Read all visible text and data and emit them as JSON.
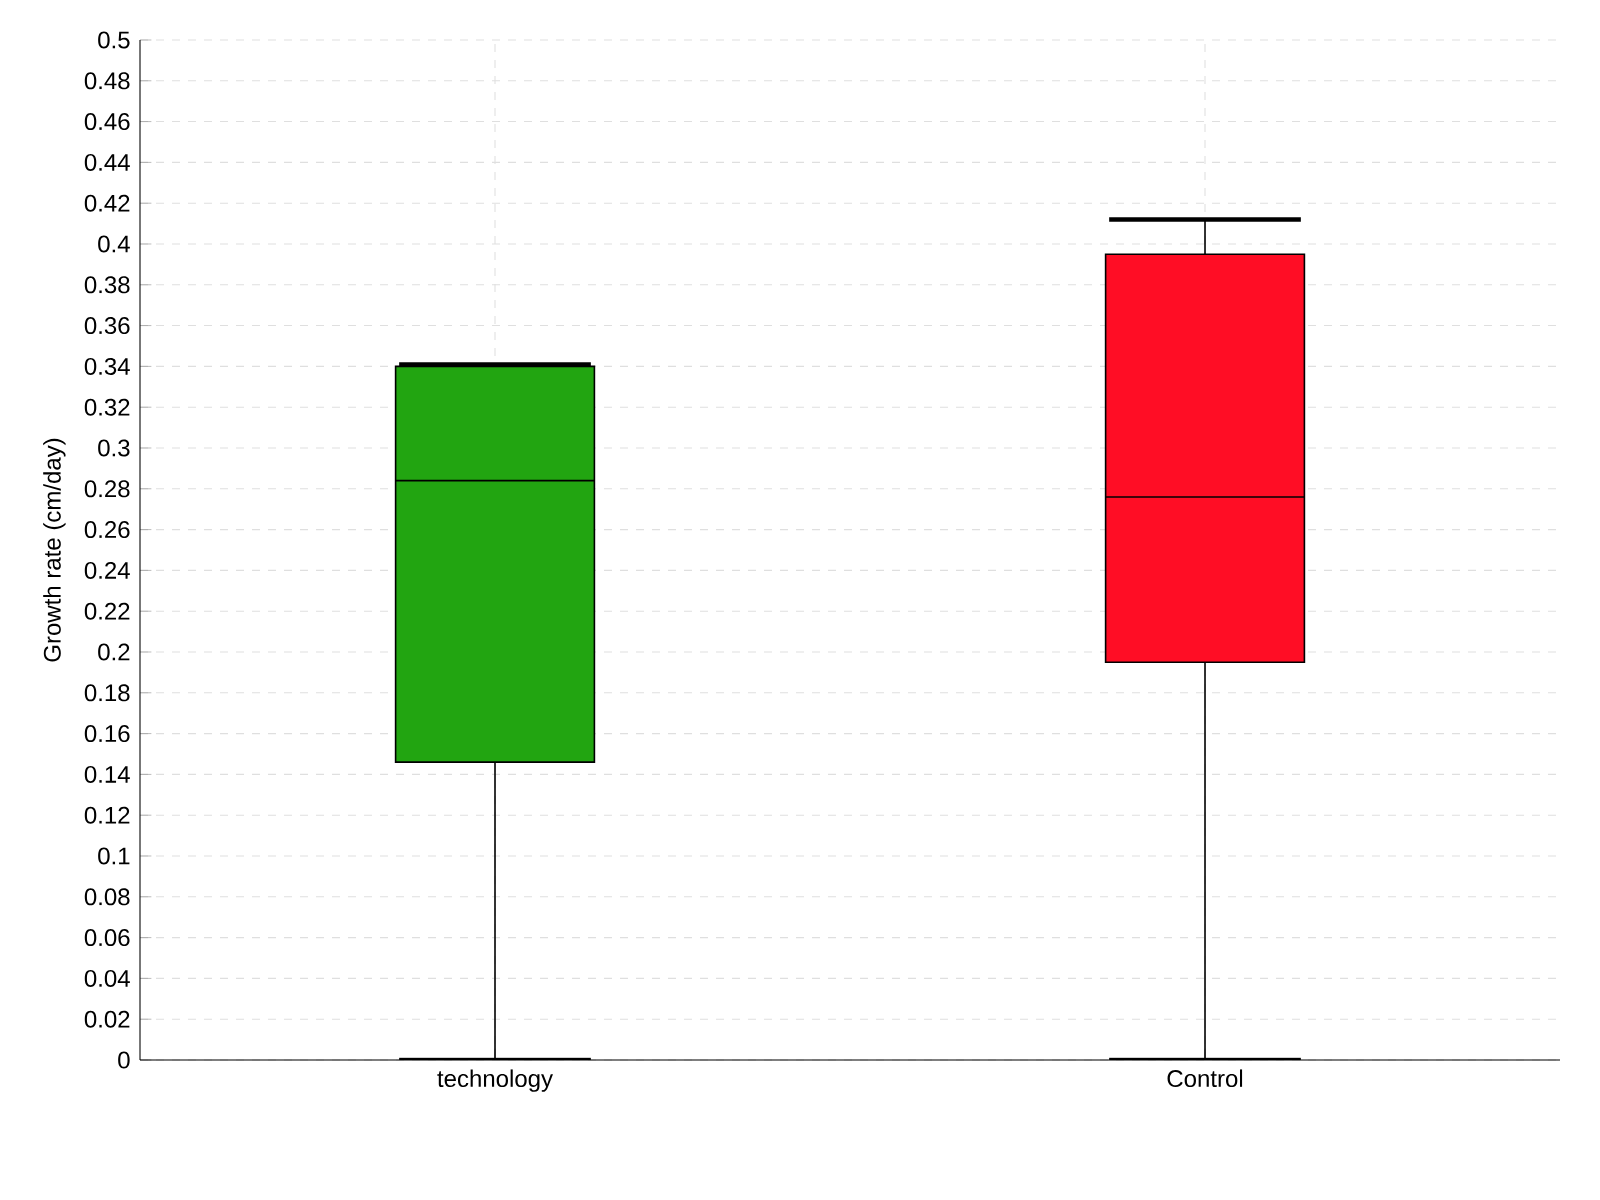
{
  "chart_data": {
    "type": "box",
    "ylabel": "Growth rate (cm/day)",
    "categories": [
      "technology",
      "Control"
    ],
    "colors": [
      "#22a511",
      "#ff0d25"
    ],
    "boxes": [
      {
        "low": 0,
        "q1": 0.146,
        "median": 0.284,
        "q3": 0.34,
        "high": 0.341
      },
      {
        "low": 0,
        "q1": 0.195,
        "median": 0.276,
        "q3": 0.395,
        "high": 0.412
      }
    ],
    "ylim": [
      0,
      0.5
    ],
    "yticks": [
      0,
      0.02,
      0.04,
      0.06,
      0.08,
      0.1,
      0.12,
      0.14,
      0.16,
      0.18,
      0.2,
      0.22,
      0.24,
      0.26,
      0.28,
      0.3,
      0.32,
      0.34,
      0.36,
      0.38,
      0.4,
      0.42,
      0.44,
      0.46,
      0.48,
      0.5
    ],
    "grid": true
  }
}
